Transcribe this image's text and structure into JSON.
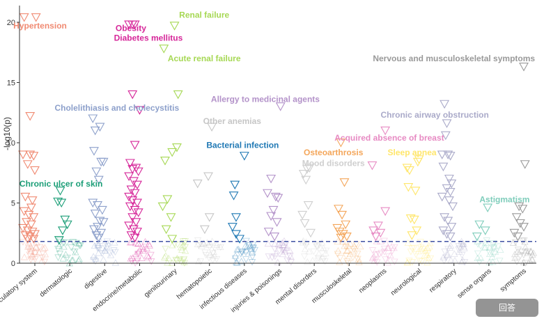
{
  "chart_data": {
    "type": "scatter",
    "title": "",
    "xlabel": "",
    "ylabel": "-log10(p)",
    "ylim": [
      0,
      20.5
    ],
    "yticks": [
      0,
      5,
      10,
      15,
      20
    ],
    "threshold": 1.8,
    "categories": [
      {
        "name": "circulatory system",
        "color": "#F08A72",
        "points": [
          [
            0.3,
            12.2
          ],
          [
            0.05,
            20.4
          ],
          [
            0.55,
            20.4
          ],
          [
            0.0,
            9.0
          ],
          [
            0.3,
            9.0
          ],
          [
            0.45,
            8.9
          ],
          [
            0.5,
            7.7
          ],
          [
            0.2,
            8.2
          ],
          [
            0.1,
            5.5
          ],
          [
            0.4,
            5.2
          ],
          [
            0.35,
            4.6
          ],
          [
            0.05,
            4.3
          ],
          [
            0.25,
            4.0
          ],
          [
            0.45,
            3.8
          ],
          [
            0.15,
            3.4
          ],
          [
            0.35,
            3.2
          ],
          [
            0.0,
            2.9
          ],
          [
            0.2,
            2.7
          ],
          [
            0.4,
            2.6
          ],
          [
            0.5,
            2.4
          ],
          [
            0.1,
            2.3
          ],
          [
            0.3,
            2.2
          ],
          [
            0.2,
            2.0
          ],
          [
            0.45,
            2.0
          ]
        ]
      },
      {
        "name": "dermatologic",
        "color": "#1B9E77",
        "points": [
          [
            0.1,
            6.0
          ],
          [
            0.0,
            5.1
          ],
          [
            0.15,
            5.0
          ],
          [
            0.3,
            3.6
          ],
          [
            0.4,
            3.2
          ],
          [
            0.2,
            2.7
          ],
          [
            0.05,
            1.9
          ]
        ]
      },
      {
        "name": "digestive",
        "color": "#8DA0CB",
        "points": [
          [
            0.0,
            12.0
          ],
          [
            0.1,
            11.0
          ],
          [
            0.3,
            11.3
          ],
          [
            0.35,
            8.4
          ],
          [
            0.45,
            8.4
          ],
          [
            0.05,
            9.3
          ],
          [
            0.15,
            7.6
          ],
          [
            0.25,
            6.9
          ],
          [
            0.0,
            5.0
          ],
          [
            0.2,
            4.8
          ],
          [
            0.4,
            4.4
          ],
          [
            0.1,
            4.1
          ],
          [
            0.3,
            3.5
          ],
          [
            0.45,
            3.4
          ],
          [
            0.2,
            3.0
          ],
          [
            0.05,
            2.8
          ],
          [
            0.35,
            2.5
          ],
          [
            0.15,
            2.3
          ],
          [
            0.25,
            2.1
          ]
        ]
      },
      {
        "name": "endocrine/metabolic",
        "color": "#D62699",
        "points": [
          [
            0.2,
            14.0
          ],
          [
            0.05,
            19.8
          ],
          [
            0.2,
            19.8
          ],
          [
            0.3,
            19.8
          ],
          [
            0.5,
            12.7
          ],
          [
            0.3,
            9.8
          ],
          [
            0.1,
            8.3
          ],
          [
            0.2,
            7.8
          ],
          [
            0.35,
            7.9
          ],
          [
            0.45,
            7.6
          ],
          [
            0.05,
            7.2
          ],
          [
            0.25,
            6.8
          ],
          [
            0.4,
            6.5
          ],
          [
            0.15,
            6.1
          ],
          [
            0.3,
            5.8
          ],
          [
            0.05,
            5.5
          ],
          [
            0.2,
            5.2
          ],
          [
            0.4,
            5.0
          ],
          [
            0.1,
            4.7
          ],
          [
            0.3,
            4.4
          ],
          [
            0.45,
            4.2
          ],
          [
            0.2,
            3.8
          ],
          [
            0.35,
            3.4
          ],
          [
            0.05,
            3.1
          ],
          [
            0.25,
            2.8
          ],
          [
            0.4,
            2.6
          ],
          [
            0.15,
            2.3
          ],
          [
            0.3,
            2.1
          ]
        ]
      },
      {
        "name": "genitourinary",
        "color": "#A6D854",
        "points": [
          [
            0.5,
            19.7
          ],
          [
            0.05,
            17.8
          ],
          [
            0.65,
            14.0
          ],
          [
            0.6,
            9.6
          ],
          [
            0.4,
            9.2
          ],
          [
            0.1,
            8.5
          ],
          [
            0.2,
            5.3
          ],
          [
            0.0,
            4.7
          ],
          [
            0.35,
            3.8
          ],
          [
            0.15,
            2.8
          ],
          [
            0.4,
            2.0
          ]
        ]
      },
      {
        "name": "hematopoietic",
        "color": "#C6C6C6",
        "points": [
          [
            0.6,
            11.3
          ],
          [
            0.45,
            7.2
          ],
          [
            0.0,
            6.6
          ],
          [
            0.5,
            3.8
          ],
          [
            0.3,
            2.8
          ]
        ]
      },
      {
        "name": "infectious diseases",
        "color": "#1F78B4",
        "points": [
          [
            0.5,
            8.9
          ],
          [
            0.1,
            6.5
          ],
          [
            0.05,
            5.6
          ],
          [
            0.15,
            3.8
          ],
          [
            0.0,
            3.0
          ],
          [
            0.15,
            2.4
          ],
          [
            0.3,
            2.0
          ]
        ]
      },
      {
        "name": "injuries & poisonings",
        "color": "#B392C9",
        "points": [
          [
            0.55,
            13.0
          ],
          [
            0.15,
            7.0
          ],
          [
            0.0,
            5.8
          ],
          [
            0.35,
            5.5
          ],
          [
            0.45,
            5.4
          ],
          [
            0.25,
            4.4
          ],
          [
            0.15,
            3.9
          ],
          [
            0.4,
            3.4
          ],
          [
            0.05,
            2.6
          ],
          [
            0.3,
            2.2
          ]
        ]
      },
      {
        "name": "mental disorders",
        "color": "#CFCFCF",
        "points": [
          [
            0.2,
            7.8
          ],
          [
            0.3,
            7.9
          ],
          [
            0.05,
            7.4
          ],
          [
            0.15,
            6.9
          ],
          [
            0.25,
            4.8
          ],
          [
            0.0,
            4.0
          ],
          [
            0.1,
            3.3
          ],
          [
            0.35,
            2.5
          ]
        ]
      },
      {
        "name": "musculoskeletal",
        "color": "#F4A65A",
        "points": [
          [
            0.15,
            10.0
          ],
          [
            0.3,
            6.7
          ],
          [
            0.05,
            4.5
          ],
          [
            0.2,
            4.0
          ],
          [
            0.35,
            3.2
          ],
          [
            0.0,
            2.9
          ],
          [
            0.1,
            2.6
          ],
          [
            0.25,
            2.4
          ],
          [
            0.4,
            2.2
          ],
          [
            0.15,
            2.1
          ]
        ]
      },
      {
        "name": "neoplasms",
        "color": "#E78AC3",
        "points": [
          [
            0.55,
            11.0
          ],
          [
            0.0,
            8.1
          ],
          [
            0.55,
            4.3
          ],
          [
            0.25,
            3.1
          ],
          [
            0.05,
            2.7
          ],
          [
            0.35,
            2.5
          ],
          [
            0.15,
            2.2
          ]
        ]
      },
      {
        "name": "neurological",
        "color": "#FFE66A",
        "points": [
          [
            0.5,
            8.6
          ],
          [
            0.45,
            8.4
          ],
          [
            0.0,
            7.9
          ],
          [
            0.1,
            7.7
          ],
          [
            0.05,
            6.3
          ],
          [
            0.35,
            6.0
          ],
          [
            0.15,
            3.7
          ],
          [
            0.3,
            3.6
          ],
          [
            0.4,
            2.7
          ],
          [
            0.2,
            2.3
          ]
        ]
      },
      {
        "name": "respiratory",
        "color": "#AAAAC9",
        "points": [
          [
            0.1,
            13.2
          ],
          [
            0.2,
            11.6
          ],
          [
            0.15,
            10.6
          ],
          [
            0.0,
            9.0
          ],
          [
            0.25,
            9.0
          ],
          [
            0.35,
            8.9
          ],
          [
            0.05,
            8.0
          ],
          [
            0.3,
            7.0
          ],
          [
            0.4,
            6.6
          ],
          [
            0.2,
            6.2
          ],
          [
            0.35,
            5.9
          ],
          [
            0.0,
            5.5
          ],
          [
            0.3,
            5.2
          ],
          [
            0.45,
            4.7
          ],
          [
            0.1,
            3.8
          ],
          [
            0.25,
            3.5
          ],
          [
            0.4,
            3.0
          ],
          [
            0.05,
            2.7
          ],
          [
            0.2,
            2.4
          ],
          [
            0.35,
            2.2
          ]
        ]
      },
      {
        "name": "sense organs",
        "color": "#7FCDBB",
        "points": [
          [
            0.45,
            4.6
          ],
          [
            0.1,
            3.2
          ],
          [
            0.35,
            2.7
          ],
          [
            0.0,
            2.2
          ]
        ]
      },
      {
        "name": "symptoms",
        "color": "#999999",
        "points": [
          [
            0.5,
            16.3
          ],
          [
            0.55,
            8.2
          ],
          [
            0.3,
            4.7
          ],
          [
            0.45,
            4.5
          ],
          [
            0.2,
            3.8
          ],
          [
            0.35,
            3.3
          ],
          [
            0.5,
            3.0
          ],
          [
            0.1,
            2.5
          ],
          [
            0.25,
            2.2
          ]
        ]
      }
    ],
    "annotations": [
      {
        "text": "Hypertension",
        "category": "circulatory system",
        "dx": 0.15,
        "y": 19.7,
        "color": "#F08A72",
        "anchor": "middle"
      },
      {
        "text": "Obesity",
        "category": "endocrine/metabolic",
        "dx": -0.25,
        "y": 19.5,
        "color": "#D62699",
        "anchor": "middle"
      },
      {
        "text": "Diabetes mellitus",
        "category": "endocrine/metabolic",
        "dx": 0.25,
        "y": 18.7,
        "color": "#D62699",
        "anchor": "middle"
      },
      {
        "text": "Renal failure",
        "category": "genitourinary",
        "dx": 0.85,
        "y": 20.6,
        "color": "#A6D854",
        "anchor": "middle"
      },
      {
        "text": "Acute renal failure",
        "category": "genitourinary",
        "dx": 0.85,
        "y": 17.0,
        "color": "#A6D854",
        "anchor": "middle"
      },
      {
        "text": "Nervous and musculoskeletal symptoms",
        "category": "respiratory",
        "dx": 0.0,
        "y": 17.0,
        "color": "#999999",
        "anchor": "middle"
      },
      {
        "text": "Cholelithiasis and cholecystitis",
        "category": "digestive",
        "dx": 0.35,
        "y": 12.9,
        "color": "#8DA0CB",
        "anchor": "middle"
      },
      {
        "text": "Allergy to medicinal agents",
        "category": "injuries & poisonings",
        "dx": -0.4,
        "y": 13.6,
        "color": "#B392C9",
        "anchor": "middle"
      },
      {
        "text": "Chronic airway obstruction",
        "category": "respiratory",
        "dx": -0.55,
        "y": 12.3,
        "color": "#AAAAC9",
        "anchor": "middle"
      },
      {
        "text": "Other anemias",
        "category": "hematopoietic",
        "dx": 0.65,
        "y": 11.8,
        "color": "#C6C6C6",
        "anchor": "middle"
      },
      {
        "text": "Acquired absence of breast",
        "category": "musculoskeletal",
        "dx": 1.15,
        "y": 10.4,
        "color": "#E78AC3",
        "anchor": "middle"
      },
      {
        "text": "Bacterial infection",
        "category": "infectious diseases",
        "dx": -0.05,
        "y": 9.8,
        "color": "#1F78B4",
        "anchor": "middle"
      },
      {
        "text": "Osteoarthrosis",
        "category": "mental disorders",
        "dx": 0.55,
        "y": 9.2,
        "color": "#F4A65A",
        "anchor": "middle"
      },
      {
        "text": "Sleep apnea",
        "category": "neurological",
        "dx": -0.2,
        "y": 9.2,
        "color": "#FFE66A",
        "anchor": "middle"
      },
      {
        "text": "Mood disorders",
        "category": "mental disorders",
        "dx": 0.55,
        "y": 8.3,
        "color": "#CFCFCF",
        "anchor": "middle"
      },
      {
        "text": "Chronic ulcer of skin",
        "category": "dermatologic",
        "dx": -0.25,
        "y": 6.6,
        "color": "#1B9E77",
        "anchor": "middle"
      },
      {
        "text": "Astigmatism",
        "category": "sense organs",
        "dx": 0.45,
        "y": 5.3,
        "color": "#7FCDBB",
        "anchor": "middle"
      }
    ]
  },
  "watermark": {
    "text": "回答"
  }
}
